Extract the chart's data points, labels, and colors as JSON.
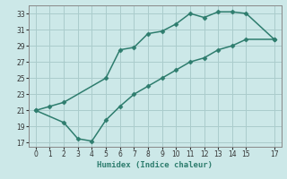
{
  "xlabel": "Humidex (Indice chaleur)",
  "bg_color": "#cce8e8",
  "grid_color": "#aacccc",
  "line_color": "#2e7d6e",
  "upper_x": [
    0,
    1,
    2,
    5,
    6,
    7,
    8,
    9,
    10,
    11,
    12,
    13,
    14,
    15,
    17
  ],
  "upper_y": [
    21,
    21.5,
    22,
    25,
    28.5,
    28.8,
    30.5,
    30.8,
    31.7,
    33.0,
    32.5,
    33.2,
    33.2,
    33.0,
    29.8
  ],
  "lower_x": [
    0,
    2,
    3,
    4,
    5,
    6,
    7,
    8,
    9,
    10,
    11,
    12,
    13,
    14,
    15,
    17
  ],
  "lower_y": [
    21,
    19.5,
    17.5,
    17.2,
    19.8,
    21.5,
    23.0,
    24.0,
    25.0,
    26.0,
    27.0,
    27.5,
    28.5,
    29.0,
    29.8,
    29.8
  ],
  "xlim": [
    -0.5,
    17.5
  ],
  "ylim": [
    16.5,
    34.0
  ],
  "xticks": [
    0,
    1,
    2,
    3,
    4,
    5,
    6,
    7,
    8,
    9,
    10,
    11,
    12,
    13,
    14,
    15,
    17
  ],
  "yticks": [
    17,
    19,
    21,
    23,
    25,
    27,
    29,
    31,
    33
  ]
}
